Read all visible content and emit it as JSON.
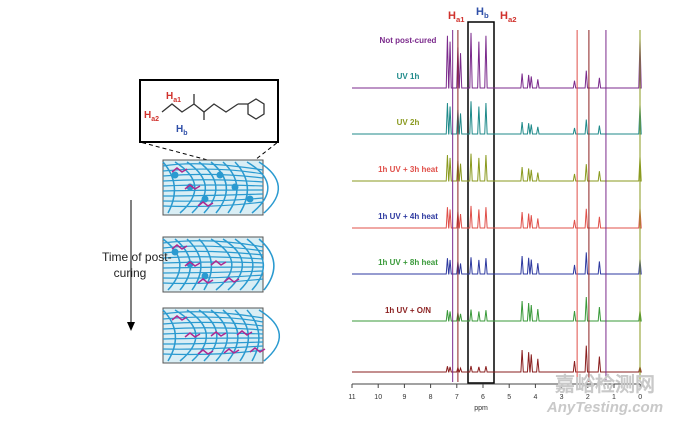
{
  "schematic": {
    "time_label": [
      "Time of post-",
      "curing"
    ],
    "molecule_labels": [
      {
        "text": "H",
        "sub": "a1",
        "color": "#d0322d"
      },
      {
        "text": "H",
        "sub": "a2",
        "color": "#d0322d"
      },
      {
        "text": "H",
        "sub": "b",
        "color": "#2f4fa8"
      }
    ]
  },
  "spectra": {
    "peak_labels": [
      {
        "text": "H",
        "sub": "a1",
        "color": "#d0322d"
      },
      {
        "text": "H",
        "sub": "b",
        "color": "#2f4fa8"
      },
      {
        "text": "H",
        "sub": "a2",
        "color": "#d0322d"
      }
    ],
    "traces": [
      {
        "label": "Not post-cured",
        "color": "#7b2a8c"
      },
      {
        "label": "UV 1h",
        "color": "#1f8a8a"
      },
      {
        "label": "UV 2h",
        "color": "#8a9a1f"
      },
      {
        "label": "1h UV + 3h heat",
        "color": "#e0504a"
      },
      {
        "label": "1h UV + 4h heat",
        "color": "#2e3aa0"
      },
      {
        "label": "1h UV + 8h heat",
        "color": "#3a9a3a"
      },
      {
        "label": "1h UV + O/N",
        "color": "#8a1f1f"
      }
    ],
    "x_ticks": [
      "11",
      "10",
      "9",
      "8",
      "7",
      "6",
      "5",
      "4",
      "3",
      "2",
      "1",
      "0"
    ],
    "x_label": "ppm"
  },
  "watermark": [
    "嘉峪检测网",
    "AnyTesting.com"
  ]
}
